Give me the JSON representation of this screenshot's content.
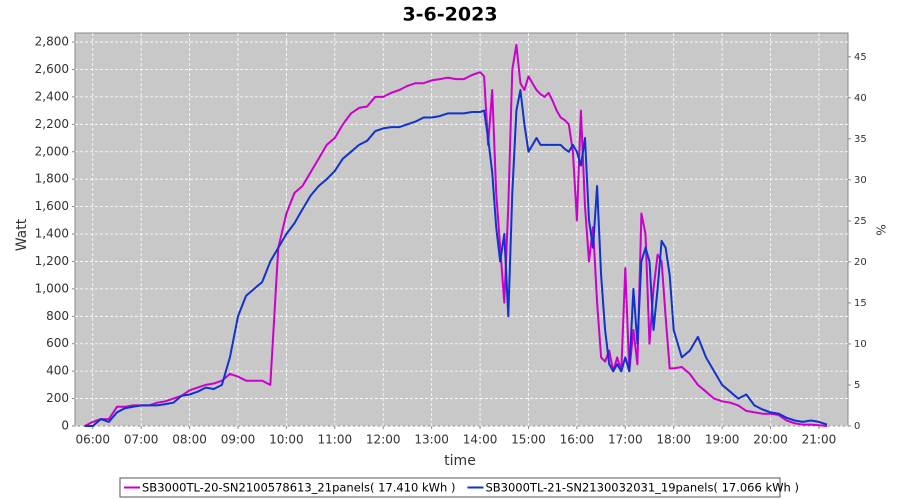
{
  "chart_data": {
    "type": "line",
    "title": "3-6-2023",
    "x_label": "time",
    "y_label": "Watt",
    "y2_label": "%",
    "x": [
      "05:50",
      "06:00",
      "06:10",
      "06:20",
      "06:30",
      "06:40",
      "06:50",
      "07:00",
      "07:10",
      "07:20",
      "07:30",
      "07:40",
      "07:50",
      "08:00",
      "08:10",
      "08:20",
      "08:30",
      "08:40",
      "08:50",
      "09:00",
      "09:10",
      "09:20",
      "09:30",
      "09:40",
      "09:50",
      "10:00",
      "10:10",
      "10:20",
      "10:30",
      "10:40",
      "10:50",
      "11:00",
      "11:10",
      "11:20",
      "11:30",
      "11:40",
      "11:50",
      "12:00",
      "12:10",
      "12:20",
      "12:30",
      "12:40",
      "12:50",
      "13:00",
      "13:10",
      "13:20",
      "13:30",
      "13:40",
      "13:50",
      "14:00",
      "14:05",
      "14:10",
      "14:15",
      "14:20",
      "14:25",
      "14:30",
      "14:35",
      "14:40",
      "14:45",
      "14:50",
      "14:55",
      "15:00",
      "15:05",
      "15:10",
      "15:15",
      "15:20",
      "15:25",
      "15:30",
      "15:35",
      "15:40",
      "15:45",
      "15:50",
      "15:55",
      "16:00",
      "16:05",
      "16:10",
      "16:15",
      "16:20",
      "16:25",
      "16:30",
      "16:35",
      "16:40",
      "16:45",
      "16:50",
      "16:55",
      "17:00",
      "17:05",
      "17:10",
      "17:15",
      "17:20",
      "17:25",
      "17:30",
      "17:35",
      "17:40",
      "17:45",
      "17:50",
      "17:55",
      "18:00",
      "18:10",
      "18:20",
      "18:30",
      "18:40",
      "18:50",
      "19:00",
      "19:10",
      "19:20",
      "19:30",
      "19:40",
      "19:50",
      "20:00",
      "20:10",
      "20:20",
      "20:30",
      "20:40",
      "20:50",
      "21:00",
      "21:10"
    ],
    "series": [
      {
        "name": "SB3000TL-20-SN2100578613_21panels( 17.410 kWh )",
        "color": "#cc00cc",
        "values": [
          0,
          30,
          50,
          50,
          140,
          140,
          150,
          150,
          150,
          170,
          180,
          200,
          220,
          260,
          280,
          300,
          310,
          330,
          380,
          360,
          330,
          330,
          330,
          300,
          1300,
          1550,
          1700,
          1750,
          1850,
          1950,
          2050,
          2100,
          2200,
          2280,
          2320,
          2330,
          2400,
          2400,
          2430,
          2450,
          2480,
          2500,
          2500,
          2520,
          2530,
          2540,
          2530,
          2530,
          2560,
          2580,
          2550,
          2050,
          2450,
          1700,
          1300,
          900,
          1600,
          2600,
          2780,
          2500,
          2450,
          2550,
          2500,
          2450,
          2420,
          2400,
          2430,
          2370,
          2300,
          2250,
          2230,
          2200,
          2000,
          1500,
          2300,
          1600,
          1200,
          1450,
          900,
          500,
          470,
          550,
          400,
          500,
          400,
          1150,
          400,
          700,
          450,
          1550,
          1400,
          600,
          1000,
          1250,
          1200,
          800,
          420,
          420,
          430,
          380,
          300,
          250,
          200,
          180,
          170,
          150,
          110,
          100,
          90,
          90,
          80,
          40,
          20,
          10,
          10,
          5,
          0
        ]
      },
      {
        "name": "SB3000TL-21-SN2130032031_19panels( 17.066 kWh )",
        "color": "#1133cc",
        "values": [
          0,
          0,
          50,
          30,
          100,
          130,
          140,
          150,
          150,
          150,
          160,
          170,
          220,
          230,
          250,
          280,
          270,
          300,
          500,
          800,
          950,
          1000,
          1050,
          1200,
          1300,
          1400,
          1480,
          1580,
          1680,
          1750,
          1800,
          1860,
          1950,
          2000,
          2050,
          2080,
          2150,
          2170,
          2180,
          2180,
          2200,
          2220,
          2250,
          2250,
          2260,
          2280,
          2280,
          2280,
          2290,
          2290,
          2300,
          2100,
          1850,
          1450,
          1200,
          1400,
          800,
          1700,
          2300,
          2450,
          2200,
          2000,
          2050,
          2100,
          2050,
          2050,
          2050,
          2050,
          2050,
          2050,
          2020,
          2000,
          2050,
          2000,
          1900,
          2100,
          1500,
          1300,
          1750,
          1100,
          700,
          450,
          400,
          450,
          400,
          500,
          400,
          1000,
          600,
          1200,
          1300,
          1200,
          700,
          1000,
          1350,
          1300,
          1100,
          700,
          500,
          550,
          650,
          500,
          400,
          300,
          250,
          200,
          230,
          150,
          120,
          100,
          90,
          60,
          40,
          30,
          40,
          30,
          10
        ]
      }
    ],
    "xlim": [
      "05:38",
      "21:36"
    ],
    "xticks": [
      "06:00",
      "07:00",
      "08:00",
      "09:00",
      "10:00",
      "11:00",
      "12:00",
      "13:00",
      "14:00",
      "15:00",
      "16:00",
      "17:00",
      "18:00",
      "19:00",
      "20:00",
      "21:00"
    ],
    "ylim": [
      0,
      2866
    ],
    "yticks": [
      0,
      200,
      400,
      600,
      800,
      {
        "value": 1000,
        "label": "1,000"
      },
      {
        "value": 1200,
        "label": "1,200"
      },
      {
        "value": 1400,
        "label": "1,400"
      },
      {
        "value": 1600,
        "label": "1,600"
      },
      {
        "value": 1800,
        "label": "1,800"
      },
      {
        "value": 2000,
        "label": "2,000"
      },
      {
        "value": 2200,
        "label": "2,200"
      },
      {
        "value": 2400,
        "label": "2,400"
      },
      {
        "value": 2600,
        "label": "2,600"
      },
      {
        "value": 2800,
        "label": "2,800"
      }
    ],
    "y2lim": [
      0,
      47.9
    ],
    "y2ticks": [
      0,
      5,
      10,
      15,
      20,
      25,
      30,
      35,
      40,
      45
    ],
    "grid": true,
    "legend": "bottom"
  }
}
